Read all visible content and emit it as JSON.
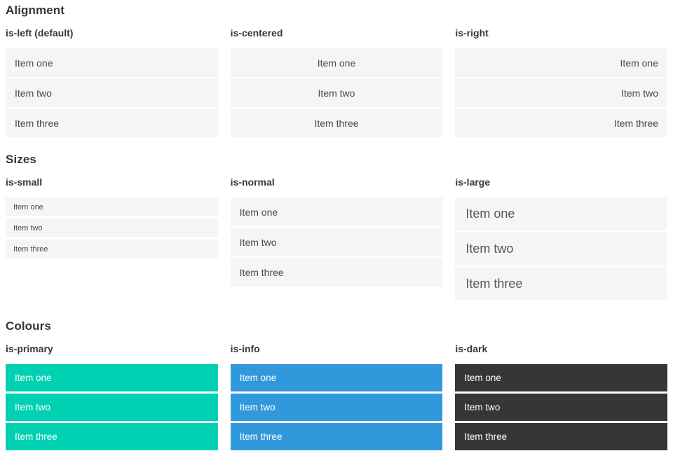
{
  "colors": {
    "item_bg": "#f5f5f5",
    "item_text": "#4a4a4a",
    "large_item_text": "#555555",
    "heading_text": "#363636",
    "colored_item_text": "#ffffff",
    "primary": "#00d1b2",
    "info": "#3298dc",
    "dark": "#363636"
  },
  "sections": [
    {
      "title": "Alignment",
      "columns": [
        {
          "label": "is-left (default)",
          "items": [
            "Item one",
            "Item two",
            "Item three"
          ]
        },
        {
          "label": "is-centered",
          "items": [
            "Item one",
            "Item two",
            "Item three"
          ]
        },
        {
          "label": "is-right",
          "items": [
            "Item one",
            "Item two",
            "Item three"
          ]
        }
      ]
    },
    {
      "title": "Sizes",
      "columns": [
        {
          "label": "is-small",
          "items": [
            "Item one",
            "Item two",
            "Item three"
          ]
        },
        {
          "label": "is-normal",
          "items": [
            "Item one",
            "Item two",
            "Item three"
          ]
        },
        {
          "label": "is-large",
          "items": [
            "Item one",
            "Item two",
            "Item three"
          ]
        }
      ]
    },
    {
      "title": "Colours",
      "columns": [
        {
          "label": "is-primary",
          "items": [
            "Item one",
            "Item two",
            "Item three"
          ]
        },
        {
          "label": "is-info",
          "items": [
            "Item one",
            "Item two",
            "Item three"
          ]
        },
        {
          "label": "is-dark",
          "items": [
            "Item one",
            "Item two",
            "Item three"
          ]
        }
      ]
    }
  ]
}
